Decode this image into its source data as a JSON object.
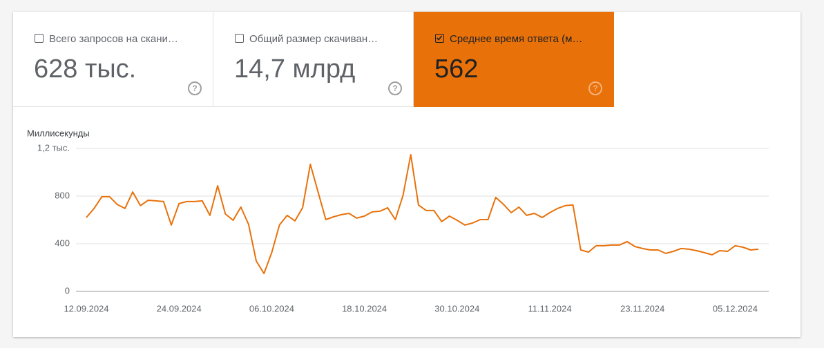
{
  "cards": [
    {
      "label": "Всего запросов на скани…",
      "value": "628 тыс.",
      "checked": false,
      "selected": false
    },
    {
      "label": "Общий размер скачиван…",
      "value": "14,7 млрд",
      "checked": false,
      "selected": false
    },
    {
      "label": "Среднее время ответа (м…",
      "value": "562",
      "checked": true,
      "selected": true
    }
  ],
  "chart_data": {
    "type": "line",
    "y_label": "Миллисекунды",
    "categories": [
      "12.09.2024",
      null,
      null,
      null,
      null,
      null,
      null,
      null,
      null,
      null,
      null,
      null,
      "24.09.2024",
      null,
      null,
      null,
      null,
      null,
      null,
      null,
      null,
      null,
      null,
      null,
      "06.10.2024",
      null,
      null,
      null,
      null,
      null,
      null,
      null,
      null,
      null,
      null,
      null,
      "18.10.2024",
      null,
      null,
      null,
      null,
      null,
      null,
      null,
      null,
      null,
      null,
      null,
      "30.10.2024",
      null,
      null,
      null,
      null,
      null,
      null,
      null,
      null,
      null,
      null,
      null,
      "11.11.2024",
      null,
      null,
      null,
      null,
      null,
      null,
      null,
      null,
      null,
      null,
      null,
      "23.11.2024",
      null,
      null,
      null,
      null,
      null,
      null,
      null,
      null,
      null,
      null,
      null,
      "05.12.2024",
      null,
      null,
      null
    ],
    "values": [
      620,
      696,
      795,
      795,
      730,
      696,
      835,
      720,
      765,
      760,
      754,
      557,
      737,
      754,
      754,
      760,
      638,
      887,
      650,
      597,
      708,
      563,
      255,
      150,
      325,
      557,
      638,
      592,
      702,
      1067,
      835,
      603,
      626,
      644,
      655,
      615,
      632,
      667,
      673,
      702,
      603,
      806,
      1148,
      725,
      679,
      679,
      586,
      632,
      597,
      557,
      574,
      603,
      603,
      789,
      731,
      661,
      708,
      638,
      655,
      620,
      661,
      696,
      720,
      725,
      348,
      330,
      383,
      383,
      389,
      389,
      418,
      377,
      360,
      348,
      348,
      319,
      336,
      360,
      354,
      342,
      325,
      307,
      342,
      336,
      383,
      371,
      348,
      354
    ],
    "color": "#e8710a",
    "ylim": [
      0,
      1200
    ],
    "yticks": [
      0,
      400,
      800,
      {
        "value": 1200,
        "label": "1,2 тыс."
      }
    ],
    "grid": true
  }
}
